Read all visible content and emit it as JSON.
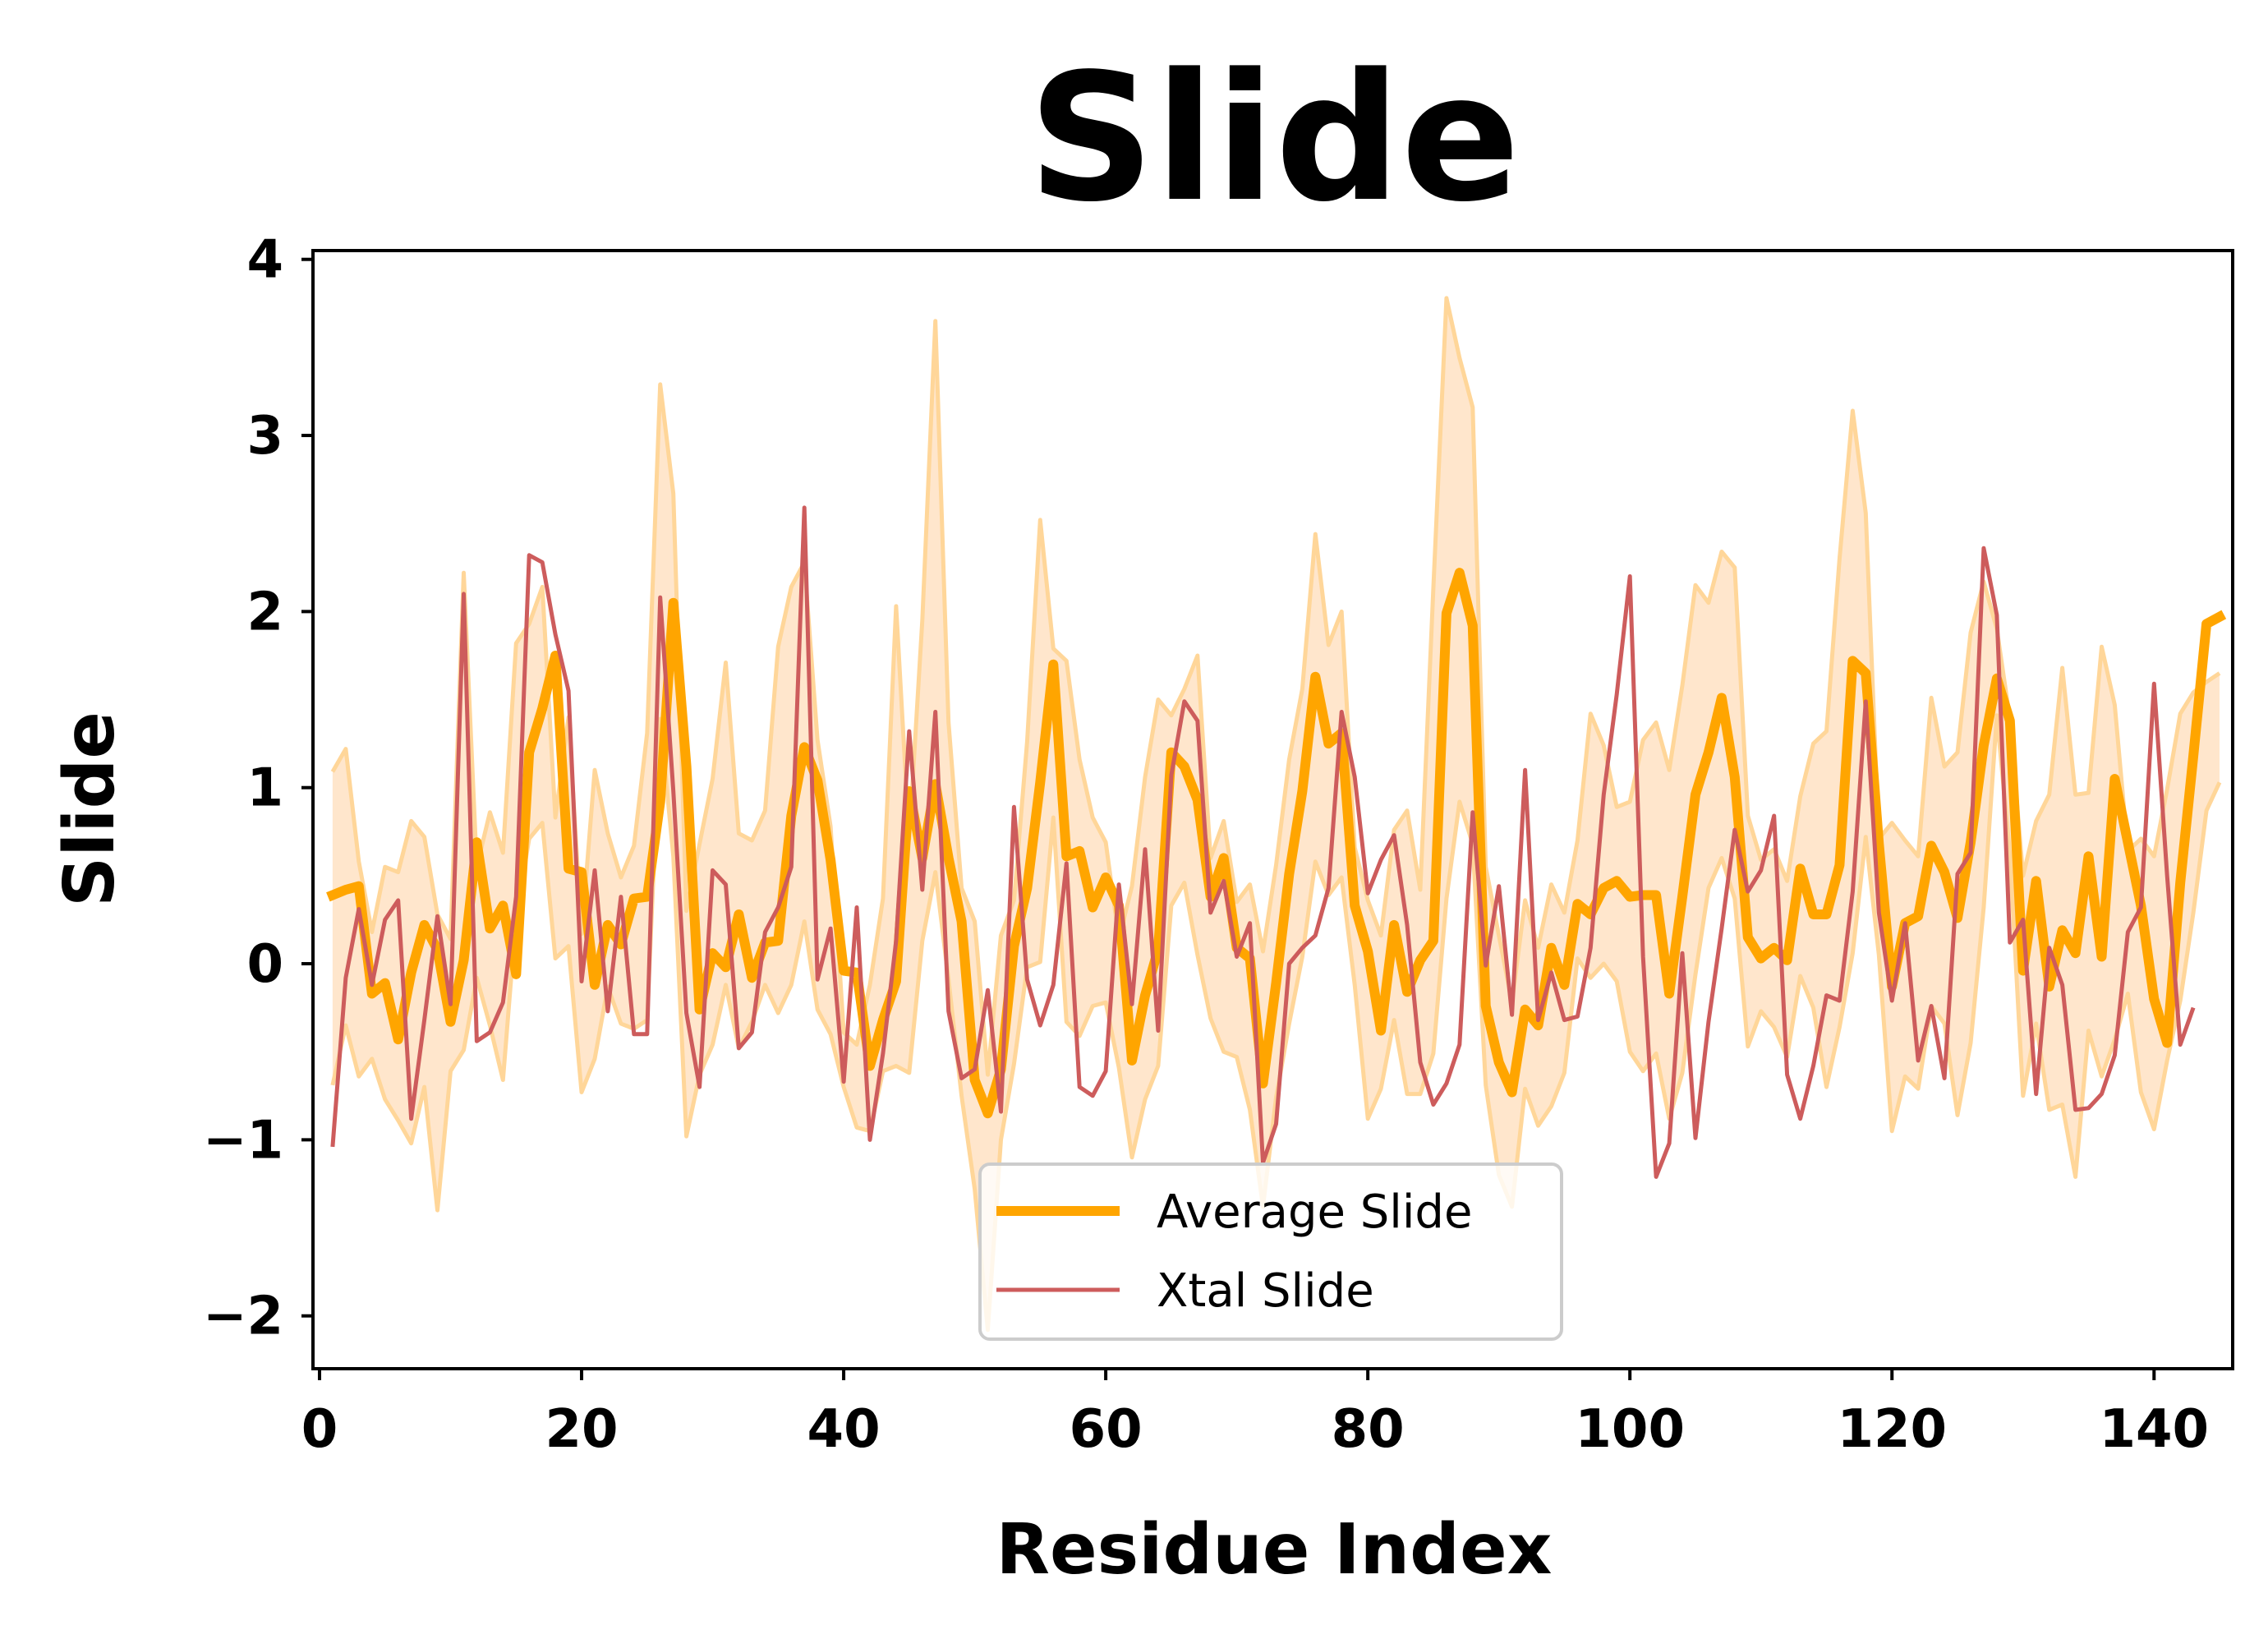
{
  "chart_data": {
    "type": "line",
    "title": "Slide",
    "xlabel": "Residue Index",
    "ylabel": "Slide",
    "xlim": [
      -0.5,
      146
    ],
    "ylim": [
      -2.3,
      4.05
    ],
    "xticks": [
      0,
      20,
      40,
      60,
      80,
      100,
      120,
      140
    ],
    "xtick_labels": [
      "0",
      "20",
      "40",
      "60",
      "80",
      "100",
      "120",
      "140"
    ],
    "yticks": [
      -2,
      -1,
      0,
      1,
      2,
      3,
      4
    ],
    "ytick_labels": [
      "−2",
      "−1",
      "0",
      "1",
      "2",
      "3",
      "4"
    ],
    "grid": false,
    "legend_position": "lower center",
    "colors": {
      "average": "#ffa500",
      "band_fill": "#ffe6cc",
      "band_edge": "#ffd699",
      "xtal": "#cd5c5c"
    },
    "series": [
      {
        "name": "Average Slide",
        "style": "thick-line",
        "x": [
          1,
          2,
          3,
          4,
          5,
          6,
          7,
          8,
          9,
          10,
          11,
          12,
          13,
          14,
          15,
          16,
          17,
          18,
          19,
          20,
          21,
          22,
          23,
          24,
          25,
          26,
          27,
          28,
          29,
          30,
          31,
          32,
          33,
          34,
          35,
          36,
          37,
          38,
          39,
          40,
          41,
          42,
          43,
          44,
          45,
          46,
          47,
          48,
          49,
          50,
          51,
          52,
          53,
          54,
          55,
          56,
          57,
          58,
          59,
          60,
          61,
          62,
          63,
          64,
          65,
          66,
          67,
          68,
          69,
          70,
          71,
          72,
          73,
          74,
          75,
          76,
          77,
          78,
          79,
          80,
          81,
          82,
          83,
          84,
          85,
          86,
          87,
          88,
          89,
          90,
          91,
          92,
          93,
          94,
          95,
          96,
          97,
          98,
          99,
          100,
          101,
          102,
          103,
          104,
          105,
          106,
          107,
          108,
          109,
          110,
          111,
          112,
          113,
          114,
          115,
          116,
          117,
          118,
          119,
          120,
          121,
          122,
          123,
          124,
          125,
          126,
          127,
          128,
          129,
          130,
          131,
          132,
          133,
          134,
          135,
          136,
          137,
          138,
          139,
          140,
          141,
          142,
          143,
          144,
          145
        ],
        "y": [
          0.39,
          0.42,
          0.44,
          -0.17,
          -0.11,
          -0.43,
          -0.05,
          0.22,
          0.08,
          -0.33,
          0.02,
          0.69,
          0.2,
          0.33,
          -0.06,
          1.2,
          1.45,
          1.75,
          0.54,
          0.52,
          -0.12,
          0.22,
          0.11,
          0.37,
          0.38,
          0.92,
          2.05,
          1.12,
          -0.26,
          0.06,
          -0.02,
          0.28,
          -0.08,
          0.12,
          0.13,
          0.84,
          1.23,
          1.04,
          0.59,
          -0.04,
          -0.05,
          -0.58,
          -0.32,
          -0.1,
          0.98,
          0.6,
          1.02,
          0.6,
          0.24,
          -0.66,
          -0.85,
          -0.6,
          0.1,
          0.43,
          1.03,
          1.7,
          0.61,
          0.64,
          0.32,
          0.49,
          0.33,
          -0.55,
          -0.18,
          0.08,
          1.2,
          1.12,
          0.93,
          0.38,
          0.6,
          0.09,
          0.03,
          -0.68,
          -0.11,
          0.51,
          0.98,
          1.63,
          1.25,
          1.31,
          0.33,
          0.07,
          -0.38,
          0.22,
          -0.16,
          0.02,
          0.13,
          1.99,
          2.22,
          1.92,
          -0.24,
          -0.56,
          -0.73,
          -0.26,
          -0.35,
          0.09,
          -0.12,
          0.34,
          0.28,
          0.43,
          0.47,
          0.38,
          0.39,
          0.39,
          -0.17,
          0.38,
          0.96,
          1.2,
          1.51,
          1.06,
          0.15,
          0.03,
          0.09,
          0.02,
          0.54,
          0.28,
          0.28,
          0.56,
          1.72,
          1.65,
          0.68,
          -0.13,
          0.23,
          0.27,
          0.67,
          0.52,
          0.26,
          0.69,
          1.24,
          1.62,
          1.38,
          -0.04,
          0.47,
          -0.13,
          0.19,
          0.06,
          0.61,
          0.04,
          1.05,
          0.69,
          0.33,
          -0.2,
          -0.45,
          0.46,
          1.18,
          1.93,
          1.97
        ]
      },
      {
        "name": "average-upper-band",
        "style": "band-upper",
        "x": [
          1,
          2,
          3,
          4,
          5,
          6,
          7,
          8,
          9,
          10,
          11,
          12,
          13,
          14,
          15,
          16,
          17,
          18,
          19,
          20,
          21,
          22,
          23,
          24,
          25,
          26,
          27,
          28,
          29,
          30,
          31,
          32,
          33,
          34,
          35,
          36,
          37,
          38,
          39,
          40,
          41,
          42,
          43,
          44,
          45,
          46,
          47,
          48,
          49,
          50,
          51,
          52,
          53,
          54,
          55,
          56,
          57,
          58,
          59,
          60,
          61,
          62,
          63,
          64,
          65,
          66,
          67,
          68,
          69,
          70,
          71,
          72,
          73,
          74,
          75,
          76,
          77,
          78,
          79,
          80,
          81,
          82,
          83,
          84,
          85,
          86,
          87,
          88,
          89,
          90,
          91,
          92,
          93,
          94,
          95,
          96,
          97,
          98,
          99,
          100,
          101,
          102,
          103,
          104,
          105,
          106,
          107,
          108,
          109,
          110,
          111,
          112,
          113,
          114,
          115,
          116,
          117,
          118,
          119,
          120,
          121,
          122,
          123,
          124,
          125,
          126,
          127,
          128,
          129,
          130,
          131,
          132,
          133,
          134,
          135,
          136,
          137,
          138,
          139,
          140,
          141,
          142,
          143,
          144,
          145
        ],
        "y": [
          1.09,
          1.22,
          0.58,
          0.18,
          0.55,
          0.52,
          0.81,
          0.72,
          0.28,
          0.14,
          2.22,
          0.55,
          0.86,
          0.63,
          1.82,
          1.93,
          2.14,
          0.83,
          1.4,
          0.17,
          1.1,
          0.74,
          0.49,
          0.67,
          1.31,
          3.29,
          2.67,
          0.3,
          0.68,
          1.05,
          1.71,
          0.74,
          0.7,
          0.87,
          1.8,
          2.14,
          2.28,
          1.27,
          0.78,
          -0.39,
          -0.46,
          -0.12,
          0.37,
          2.03,
          0.71,
          1.95,
          3.65,
          1.37,
          0.43,
          0.24,
          -0.63,
          0.16,
          0.36,
          1.26,
          2.52,
          1.79,
          1.72,
          1.16,
          0.83,
          0.69,
          0.14,
          0.44,
          1.06,
          1.5,
          1.41,
          1.56,
          1.75,
          0.6,
          0.81,
          0.35,
          0.45,
          0.07,
          0.56,
          1.16,
          1.56,
          2.44,
          1.81,
          2.0,
          0.66,
          0.36,
          0.16,
          0.76,
          0.87,
          0.42,
          2.13,
          3.78,
          3.44,
          3.16,
          0.55,
          0.16,
          -0.22,
          0.36,
          0.09,
          0.45,
          0.29,
          0.7,
          1.42,
          1.24,
          0.89,
          0.92,
          1.27,
          1.37,
          1.1,
          1.58,
          2.15,
          2.05,
          2.34,
          2.25,
          0.84,
          0.59,
          0.65,
          0.47,
          0.95,
          1.25,
          1.32,
          2.3,
          3.14,
          2.56,
          0.71,
          0.8,
          0.7,
          0.61,
          1.51,
          1.12,
          1.2,
          1.88,
          2.17,
          1.9,
          1.39,
          0.5,
          0.81,
          0.96,
          1.68,
          0.96,
          0.97,
          1.8,
          1.47,
          0.64,
          0.71,
          0.61,
          0.99,
          1.42,
          1.54,
          1.6,
          1.65
        ]
      },
      {
        "name": "average-lower-band",
        "style": "band-lower",
        "x": [
          1,
          2,
          3,
          4,
          5,
          6,
          7,
          8,
          9,
          10,
          11,
          12,
          13,
          14,
          15,
          16,
          17,
          18,
          19,
          20,
          21,
          22,
          23,
          24,
          25,
          26,
          27,
          28,
          29,
          30,
          31,
          32,
          33,
          34,
          35,
          36,
          37,
          38,
          39,
          40,
          41,
          42,
          43,
          44,
          45,
          46,
          47,
          48,
          49,
          50,
          51,
          52,
          53,
          54,
          55,
          56,
          57,
          58,
          59,
          60,
          61,
          62,
          63,
          64,
          65,
          66,
          67,
          68,
          69,
          70,
          71,
          72,
          73,
          74,
          75,
          76,
          77,
          78,
          79,
          80,
          81,
          82,
          83,
          84,
          85,
          86,
          87,
          88,
          89,
          90,
          91,
          92,
          93,
          94,
          95,
          96,
          97,
          98,
          99,
          100,
          101,
          102,
          103,
          104,
          105,
          106,
          107,
          108,
          109,
          110,
          111,
          112,
          113,
          114,
          115,
          116,
          117,
          118,
          119,
          120,
          121,
          122,
          123,
          124,
          125,
          126,
          127,
          128,
          129,
          130,
          131,
          132,
          133,
          134,
          135,
          136,
          137,
          138,
          139,
          140,
          141,
          142,
          143,
          144,
          145
        ],
        "y": [
          -0.69,
          -0.35,
          -0.64,
          -0.54,
          -0.77,
          -0.89,
          -1.02,
          -0.7,
          -1.4,
          -0.61,
          -0.49,
          -0.08,
          -0.35,
          -0.66,
          0.27,
          0.71,
          0.8,
          0.03,
          0.1,
          -0.73,
          -0.54,
          -0.13,
          -0.34,
          -0.37,
          -0.32,
          1.39,
          0.61,
          -0.98,
          -0.63,
          -0.46,
          -0.12,
          -0.48,
          -0.33,
          -0.12,
          -0.28,
          -0.12,
          0.24,
          -0.26,
          -0.4,
          -0.7,
          -0.93,
          -0.95,
          -0.61,
          -0.58,
          -0.62,
          0.13,
          0.52,
          -0.09,
          -0.75,
          -1.28,
          -2.08,
          -1.0,
          -0.57,
          -0.02,
          0.01,
          0.83,
          -0.33,
          -0.41,
          -0.24,
          -0.22,
          -0.59,
          -1.1,
          -0.77,
          -0.58,
          0.33,
          0.46,
          0.05,
          -0.31,
          -0.5,
          -0.53,
          -0.83,
          -1.38,
          -0.76,
          -0.34,
          0.04,
          0.58,
          0.39,
          0.49,
          -0.12,
          -0.88,
          -0.71,
          -0.32,
          -0.74,
          -0.74,
          -0.51,
          0.37,
          0.92,
          0.68,
          -0.69,
          -1.2,
          -1.38,
          -0.71,
          -0.92,
          -0.81,
          -0.62,
          0.03,
          -0.08,
          0.0,
          -0.1,
          -0.5,
          -0.61,
          -0.51,
          -0.88,
          -0.62,
          -0.06,
          0.43,
          0.6,
          0.37,
          -0.47,
          -0.27,
          -0.36,
          -0.53,
          -0.07,
          -0.25,
          -0.7,
          -0.36,
          0.06,
          0.72,
          0.05,
          -0.95,
          -0.64,
          -0.71,
          -0.24,
          -0.34,
          -0.86,
          -0.45,
          0.32,
          1.41,
          0.62,
          -0.75,
          -0.34,
          -0.83,
          -0.8,
          -1.21,
          -0.38,
          -0.64,
          -0.43,
          -0.17,
          -0.73,
          -0.94,
          -0.55,
          -0.21,
          0.29,
          0.87,
          1.03
        ]
      },
      {
        "name": "Xtal Slide",
        "style": "thin-line",
        "x": [
          1,
          2,
          3,
          4,
          5,
          6,
          7,
          8,
          9,
          10,
          11,
          12,
          13,
          14,
          15,
          16,
          17,
          18,
          19,
          20,
          21,
          22,
          23,
          24,
          25,
          26,
          27,
          28,
          29,
          30,
          31,
          32,
          33,
          34,
          35,
          36,
          37,
          38,
          39,
          40,
          41,
          42,
          43,
          44,
          45,
          46,
          47,
          48,
          49,
          50,
          51,
          52,
          53,
          54,
          55,
          56,
          57,
          58,
          59,
          60,
          61,
          62,
          63,
          64,
          65,
          66,
          67,
          68,
          69,
          70,
          71,
          72,
          73,
          74,
          75,
          76,
          77,
          78,
          79,
          80,
          81,
          82,
          83,
          84,
          85,
          86,
          87,
          88,
          89,
          90,
          91,
          92,
          93,
          94,
          95,
          96,
          97,
          98,
          99,
          100,
          101,
          102,
          103,
          104,
          105,
          106,
          107,
          108,
          109,
          110,
          111,
          112,
          113,
          114,
          115,
          116,
          117,
          118,
          119,
          120,
          121,
          122,
          123,
          124,
          125,
          126,
          127,
          128,
          129,
          130,
          131,
          132,
          133,
          134,
          135,
          136,
          137,
          138,
          139,
          140,
          141,
          142,
          143
        ],
        "y": [
          -1.04,
          -0.08,
          0.31,
          -0.12,
          0.25,
          0.36,
          -0.88,
          -0.32,
          0.27,
          -0.23,
          2.1,
          -0.44,
          -0.39,
          -0.22,
          0.38,
          2.32,
          2.28,
          1.87,
          1.55,
          -0.1,
          0.53,
          -0.27,
          0.38,
          -0.4,
          -0.4,
          2.08,
          0.98,
          -0.28,
          -0.7,
          0.53,
          0.45,
          -0.48,
          -0.39,
          0.18,
          0.32,
          0.55,
          2.59,
          -0.09,
          0.2,
          -0.67,
          0.32,
          -1.0,
          -0.51,
          0.13,
          1.32,
          0.42,
          1.43,
          -0.27,
          -0.65,
          -0.6,
          -0.15,
          -0.84,
          0.89,
          -0.09,
          -0.35,
          -0.12,
          0.57,
          -0.7,
          -0.75,
          -0.61,
          0.45,
          -0.23,
          0.65,
          -0.38,
          1.07,
          1.49,
          1.38,
          0.29,
          0.47,
          0.04,
          0.23,
          -1.13,
          -0.91,
          0.0,
          0.09,
          0.16,
          0.43,
          1.43,
          1.06,
          0.4,
          0.59,
          0.73,
          0.22,
          -0.56,
          -0.8,
          -0.68,
          -0.46,
          0.86,
          -0.01,
          0.44,
          -0.29,
          1.1,
          -0.32,
          -0.05,
          -0.32,
          -0.3,
          0.09,
          0.96,
          1.53,
          2.2,
          0.04,
          -1.21,
          -1.02,
          0.06,
          -0.99,
          -0.33,
          0.2,
          0.76,
          0.41,
          0.53,
          0.84,
          -0.63,
          -0.88,
          -0.58,
          -0.18,
          -0.21,
          0.41,
          1.49,
          0.29,
          -0.21,
          0.23,
          -0.55,
          -0.24,
          -0.65,
          0.51,
          0.63,
          2.36,
          1.98,
          0.12,
          0.25,
          -0.74,
          0.09,
          -0.12,
          -0.83,
          -0.82,
          -0.74,
          -0.52,
          0.18,
          0.32,
          1.59,
          0.5,
          -0.46,
          -0.25
        ]
      }
    ]
  }
}
